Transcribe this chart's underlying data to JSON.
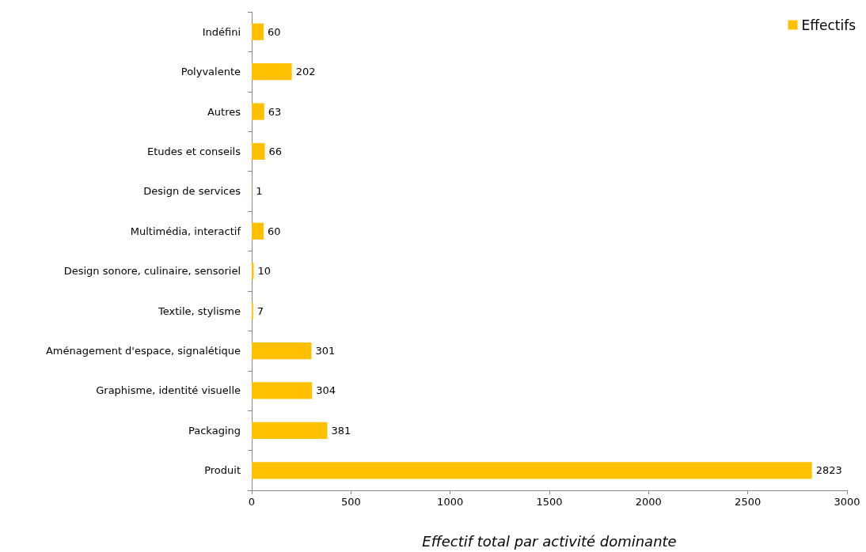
{
  "chart_data": {
    "type": "bar",
    "orientation": "horizontal",
    "xlabel": "Effectif total par activité dominante",
    "categories": [
      "Indéfini",
      "Polyvalente",
      "Autres",
      "Etudes et conseils",
      "Design de services",
      "Multimédia, interactif",
      "Design sonore, culinaire, sensoriel",
      "Textile, stylisme",
      "Aménagement d'espace, signalétique",
      "Graphisme, identité visuelle",
      "Packaging",
      "Produit"
    ],
    "series": [
      {
        "name": "Effectifs",
        "color": "#ffc000",
        "values": [
          60,
          202,
          63,
          66,
          1,
          60,
          10,
          7,
          301,
          304,
          381,
          2823
        ]
      }
    ],
    "xlim": [
      0,
      3000
    ],
    "xticks": [
      0,
      500,
      1000,
      1500,
      2000,
      2500,
      3000
    ],
    "data_labels": true,
    "grid": false,
    "legend": "top right"
  }
}
